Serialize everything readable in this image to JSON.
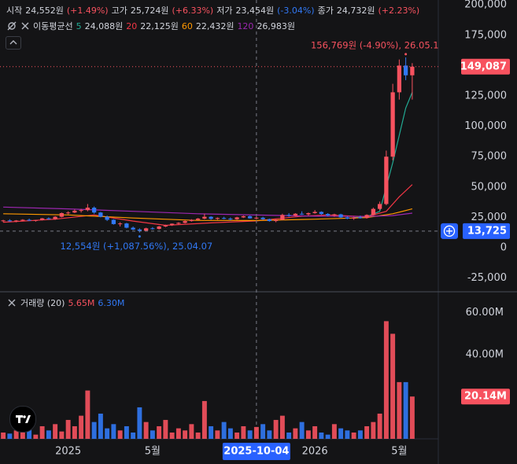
{
  "chart_data": {
    "type": "candlestick",
    "header": [
      {
        "label": "시작",
        "value": "24,552원",
        "change": "(+1.49%)"
      },
      {
        "label": "고가",
        "value": "25,724원",
        "change": "(+6.33%)"
      },
      {
        "label": "저가",
        "value": "23,454원",
        "change": "(-3.04%)"
      },
      {
        "label": "종가",
        "value": "24,732원",
        "change": "(+2.23%)"
      }
    ],
    "ma_title": "이동평균선",
    "up_color": "#f7525f",
    "down_color": "#3179f5",
    "categories": [
      null,
      null,
      null,
      null,
      null,
      null,
      null,
      null,
      null,
      null,
      "2025",
      null,
      null,
      null,
      null,
      null,
      null,
      null,
      null,
      null,
      null,
      null,
      null,
      "5월",
      null,
      null,
      null,
      null,
      null,
      null,
      null,
      null,
      null,
      null,
      null,
      null,
      null,
      null,
      null,
      "2025-10-04",
      null,
      null,
      null,
      null,
      null,
      null,
      null,
      null,
      "2026",
      null,
      null,
      null,
      null,
      null,
      null,
      null,
      null,
      null,
      null,
      null,
      null,
      "5월",
      null,
      null
    ],
    "candles": [
      [
        22000,
        23000,
        21000,
        22500
      ],
      [
        22500,
        23500,
        21500,
        21800
      ],
      [
        21800,
        22800,
        21000,
        22400
      ],
      [
        22400,
        23500,
        21800,
        23000
      ],
      [
        23000,
        24000,
        22000,
        22300
      ],
      [
        22300,
        23000,
        21500,
        22800
      ],
      [
        22800,
        24500,
        22500,
        24200
      ],
      [
        24200,
        25000,
        23000,
        23500
      ],
      [
        23500,
        26000,
        23000,
        25500
      ],
      [
        25500,
        29000,
        25000,
        28500
      ],
      [
        28500,
        30000,
        27500,
        29000
      ],
      [
        29000,
        31500,
        28500,
        30500
      ],
      [
        30500,
        32000,
        29000,
        31000
      ],
      [
        31000,
        36000,
        30000,
        33000
      ],
      [
        33000,
        34000,
        28000,
        29000
      ],
      [
        29000,
        29500,
        25000,
        25500
      ],
      [
        25500,
        26500,
        22000,
        23000
      ],
      [
        23000,
        23500,
        19000,
        19500
      ],
      [
        19500,
        21000,
        17500,
        20000
      ],
      [
        20000,
        20500,
        16000,
        16500
      ],
      [
        16500,
        17500,
        14500,
        15000
      ],
      [
        15000,
        16000,
        12554,
        14000
      ],
      [
        14000,
        16500,
        13500,
        16000
      ],
      [
        16000,
        17000,
        15000,
        15500
      ],
      [
        15500,
        18000,
        15000,
        17500
      ],
      [
        17500,
        19000,
        17000,
        18500
      ],
      [
        18500,
        20000,
        18000,
        19800
      ],
      [
        19800,
        21000,
        19000,
        20500
      ],
      [
        20500,
        22500,
        20000,
        22000
      ],
      [
        22000,
        23500,
        21500,
        23000
      ],
      [
        23000,
        24500,
        22500,
        24000
      ],
      [
        24000,
        28000,
        23500,
        25500
      ],
      [
        25500,
        26000,
        23000,
        23800
      ],
      [
        23800,
        25000,
        23000,
        24500
      ],
      [
        24500,
        25500,
        23500,
        24000
      ],
      [
        24000,
        25000,
        22500,
        23500
      ],
      [
        23500,
        25500,
        23000,
        25000
      ],
      [
        25000,
        26500,
        24500,
        26000
      ],
      [
        26000,
        26500,
        24000,
        24200
      ],
      [
        24552,
        25724,
        23454,
        24732
      ],
      [
        24732,
        25500,
        23000,
        23500
      ],
      [
        23500,
        24000,
        21500,
        22000
      ],
      [
        22000,
        23500,
        21000,
        23000
      ],
      [
        23000,
        28000,
        22800,
        27000
      ],
      [
        27000,
        28500,
        25500,
        26500
      ],
      [
        26500,
        28500,
        26000,
        28000
      ],
      [
        28000,
        30000,
        27000,
        27500
      ],
      [
        27500,
        29000,
        26500,
        28500
      ],
      [
        28500,
        31000,
        28000,
        29500
      ],
      [
        29500,
        30000,
        27000,
        27800
      ],
      [
        27800,
        28500,
        26000,
        26500
      ],
      [
        26500,
        28000,
        25500,
        27500
      ],
      [
        27500,
        28000,
        24500,
        25000
      ],
      [
        25000,
        26000,
        23500,
        24000
      ],
      [
        24000,
        25500,
        23000,
        25000
      ],
      [
        25000,
        26500,
        24000,
        24500
      ],
      [
        24500,
        27500,
        24000,
        27000
      ],
      [
        27000,
        33000,
        26500,
        32000
      ],
      [
        32000,
        38000,
        31000,
        36000
      ],
      [
        36000,
        80000,
        35000,
        75000
      ],
      [
        75000,
        135000,
        72000,
        128000
      ],
      [
        128000,
        155000,
        122000,
        150000
      ],
      [
        150000,
        156769,
        138000,
        142000
      ],
      [
        142000,
        152000,
        122000,
        149087
      ]
    ],
    "volume": [
      3,
      2.5,
      4,
      3,
      5,
      2,
      6,
      4,
      7,
      3.5,
      9,
      6,
      11,
      23,
      8,
      12,
      5,
      7,
      4,
      6,
      3,
      15,
      8,
      4,
      6,
      9,
      3,
      5,
      4,
      7,
      3,
      18,
      6,
      4,
      8,
      5,
      3,
      6,
      4,
      5.65,
      7,
      4,
      9,
      11,
      3,
      5,
      8,
      4,
      6,
      3,
      2,
      7,
      5,
      4,
      3,
      4,
      6,
      8,
      12,
      56,
      50,
      27,
      27,
      20.14
    ],
    "ma": [
      {
        "name": "5",
        "color": "#22ab94",
        "legend_value": "24,088원",
        "x": [
          54,
          56,
          58,
          60,
          62,
          63
        ],
        "values": [
          24800,
          25600,
          30000,
          70000,
          115000,
          128000
        ]
      },
      {
        "name": "20",
        "color": "#f23645",
        "legend_value": "22,125원",
        "x": [
          0,
          8,
          14,
          20,
          25,
          32,
          39,
          46,
          50,
          56,
          59,
          61,
          63
        ],
        "values": [
          21000,
          23500,
          27000,
          22000,
          18500,
          20500,
          22125,
          26000,
          27000,
          25500,
          30000,
          42000,
          52000
        ]
      },
      {
        "name": "60",
        "color": "#ff9800",
        "legend_value": "22,432원",
        "x": [
          0,
          10,
          20,
          30,
          39,
          48,
          56,
          60,
          63
        ],
        "values": [
          28000,
          27000,
          24500,
          22500,
          22432,
          23500,
          24800,
          28000,
          32000
        ]
      },
      {
        "name": "120",
        "color": "#9c27b0",
        "legend_value": "26,983원",
        "x": [
          0,
          10,
          20,
          30,
          39,
          48,
          56,
          60,
          63
        ],
        "values": [
          33500,
          32000,
          30000,
          28000,
          26983,
          26000,
          25800,
          26500,
          28500
        ]
      }
    ],
    "volume_legend": {
      "title": "거래량 (20)",
      "values": [
        {
          "text": "5.65M",
          "color": "#f7525f"
        },
        {
          "text": "6.30M",
          "color": "#3179f5"
        }
      ]
    },
    "ylim": [
      -35600,
      204000
    ],
    "yticks": [
      {
        "value": -25000,
        "label": "-25,000"
      },
      0,
      {
        "value": 25000,
        "label": "25,000"
      },
      {
        "value": 50000,
        "label": "50,000"
      },
      {
        "value": 75000,
        "label": "75,000"
      },
      {
        "value": 100000,
        "label": "100,000"
      },
      {
        "value": 125000,
        "label": "125,000"
      },
      {
        "value": 150000,
        "label": "150,000"
      },
      {
        "value": 175000,
        "label": "175,000"
      },
      {
        "value": 200000,
        "label": "200,000"
      }
    ],
    "y2lim": [
      0,
      70
    ],
    "y2ticks": [
      {
        "value": 40,
        "label": "40.00M"
      },
      {
        "value": 60,
        "label": "60.00M"
      }
    ],
    "high_note": {
      "value": 156769,
      "label": "156,769원 (-4.90%), 26.05.1"
    },
    "low_note": {
      "value": 12554,
      "label": "12,554원 (+1,087.56%), 25.04.07"
    },
    "last_price": {
      "value": 149087,
      "label": "149,087"
    },
    "last_volume": {
      "value": 20.14,
      "label": "20.14M"
    },
    "crosshair": {
      "x": "2025-10-04",
      "y": {
        "value": 13725,
        "label": "13,725"
      }
    }
  }
}
